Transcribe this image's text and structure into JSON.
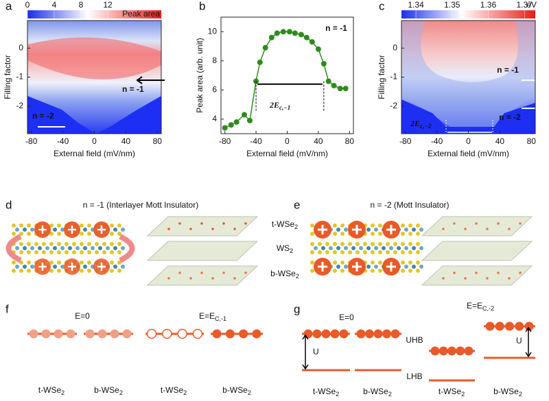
{
  "panels": {
    "a": {
      "label": "a",
      "colorbar": {
        "title": "Peak area",
        "ticks": [
          0,
          4,
          8,
          12
        ],
        "lim": [
          0,
          20
        ]
      },
      "ylabel": "Filling factor",
      "xlabel": "External field (mV/nm)",
      "xlim": [
        -85,
        85
      ],
      "xticks": [
        -80,
        -40,
        0,
        40,
        80
      ],
      "ylim": [
        -2.95,
        0.95
      ],
      "yticks": [
        0,
        -1,
        -2
      ],
      "annotations": [
        "n = -1",
        "n = -2"
      ]
    },
    "b": {
      "label": "b",
      "chart_data": {
        "type": "line",
        "xlabel": "External field (mV/nm)",
        "ylabel": "Peak area (arb. unit)",
        "annotation": "n = -1",
        "gap_label": {
          "main": "2E",
          "sub": "c,−1"
        },
        "color": "#2e8b1e",
        "x": [
          -80,
          -72,
          -65,
          -55,
          -48,
          -40,
          -35,
          -28,
          -20,
          -13,
          -5,
          3,
          10,
          18,
          25,
          32,
          40,
          47,
          53,
          60,
          68,
          75
        ],
        "values": [
          3.4,
          3.6,
          3.8,
          4.3,
          3.9,
          6.6,
          7.9,
          8.9,
          9.6,
          9.9,
          10.0,
          10.0,
          9.9,
          9.8,
          9.6,
          9.3,
          8.8,
          7.8,
          6.6,
          6.3,
          6.1,
          6.1
        ],
        "xlim": [
          -85,
          85
        ],
        "xticks": [
          -80,
          -40,
          0,
          40,
          80
        ],
        "ylim": [
          3,
          11
        ],
        "yticks": [
          4,
          6,
          8,
          10
        ]
      }
    },
    "c": {
      "label": "c",
      "colorbar": {
        "unit": "eV",
        "ticks": [
          1.34,
          1.35,
          1.36,
          1.37
        ],
        "lim": [
          1.336,
          1.373
        ]
      },
      "ylabel": "Filling factor",
      "xlabel": "External field (mV/nm)",
      "xlim": [
        -85,
        85
      ],
      "xticks": [
        -80,
        -40,
        0,
        40,
        80
      ],
      "ylim": [
        -2.95,
        0.95
      ],
      "yticks": [
        0,
        -1,
        -2
      ],
      "annotations": [
        "n = -1",
        "n = -2"
      ],
      "gap_label": {
        "main": "2E",
        "sub": "c,−2"
      }
    },
    "d": {
      "label": "d",
      "title": "n = -1 (Interlayer Mott Insulator)"
    },
    "e": {
      "label": "e",
      "title": "n = -2 (Mott Insulator)"
    },
    "layers": [
      {
        "text": "t-WSe",
        "sub": "2"
      },
      {
        "text": "WS",
        "sub": "2"
      },
      {
        "text": "b-WSe",
        "sub": "2"
      }
    ],
    "f": {
      "label": "f",
      "field_zero": "E=0",
      "field": {
        "main": "E=E",
        "sub": "C,-1"
      },
      "labels": [
        {
          "text": "t-WSe",
          "sub": "2"
        },
        {
          "text": "b-WSe",
          "sub": "2"
        },
        {
          "text": "t-WSe",
          "sub": "2"
        },
        {
          "text": "b-WSe",
          "sub": "2"
        }
      ]
    },
    "g": {
      "label": "g",
      "field_zero": "E=0",
      "field": {
        "main": "E=E",
        "sub": "C,-2"
      },
      "upper_band": "UHB",
      "lower_band": "LHB",
      "gap": "U",
      "labels": [
        {
          "text": "t-WSe",
          "sub": "2"
        },
        {
          "text": "b-WSe",
          "sub": "2"
        },
        {
          "text": "t-WSe",
          "sub": "2"
        },
        {
          "text": "b-WSe",
          "sub": "2"
        }
      ]
    }
  }
}
